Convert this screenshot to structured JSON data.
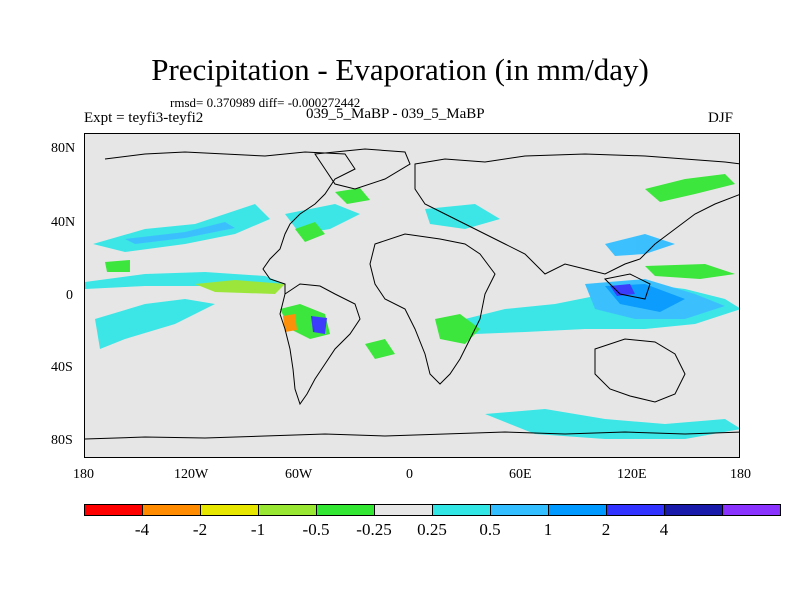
{
  "title": "Precipitation - Evaporation (in mm/day)",
  "stats": "rmsd= 0.370989 diff= -0.000272442",
  "expt": "Expt = teyfi3-teyfi2",
  "comparison": "039_5_MaBP - 039_5_MaBP",
  "season": "DJF",
  "axes": {
    "y_ticks": [
      "80N",
      "40N",
      "0",
      "40S",
      "80S"
    ],
    "x_ticks": [
      "180",
      "120W",
      "60W",
      "0",
      "60E",
      "120E",
      "180"
    ]
  },
  "colorbar": {
    "colors": [
      "#ff0000",
      "#ff8c00",
      "#e6e600",
      "#99e633",
      "#33e633",
      "#e6e6e6",
      "#33e6e6",
      "#33bfff",
      "#0099ff",
      "#3333ff",
      "#1a1aaa",
      "#8a33ff"
    ],
    "labels": [
      "-4",
      "-2",
      "-1",
      "-0.5",
      "-0.25",
      "0.25",
      "0.5",
      "1",
      "2",
      "4"
    ]
  },
  "colors": {
    "background_land_ocean": "#e6e6e6",
    "coastline": "#000000"
  }
}
